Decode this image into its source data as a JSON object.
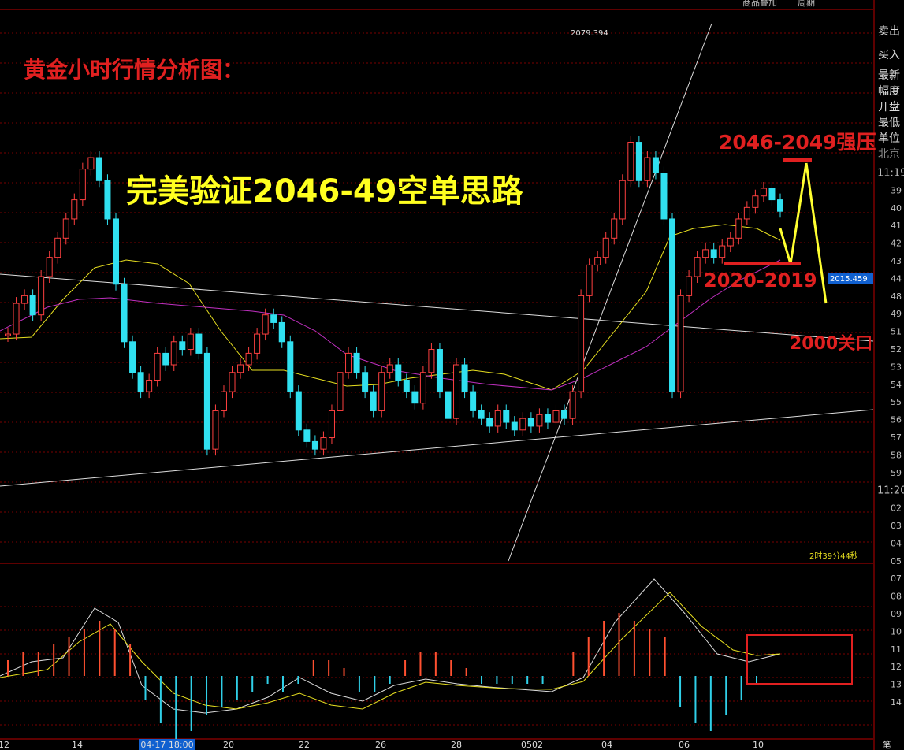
{
  "header": {
    "title": "黄金小时行情分析图：",
    "headline": "完美验证2046-49空单思路",
    "top_menu": [
      "商品叠加",
      "周期"
    ]
  },
  "annotations": {
    "resistance": "2046-2049强压",
    "support": "2020-2019",
    "key_level": "2000关口"
  },
  "price_labels": {
    "high": "2079.394",
    "last": "2015.459"
  },
  "countdown": "2时39分44秒",
  "side_panel": [
    "卖出",
    "买入",
    "最新",
    "幅度",
    "开盘",
    "最低",
    "单位",
    "北京"
  ],
  "time_scale": [
    "11:19",
    "39",
    "40",
    "41",
    "42",
    "43",
    "44",
    "48",
    "49",
    "51",
    "52",
    "53",
    "54",
    "55",
    "56",
    "57",
    "58",
    "59",
    "11:20",
    "02",
    "03",
    "04",
    "05",
    "07",
    "08",
    "09",
    "10",
    "11",
    "12",
    "13",
    "14"
  ],
  "x_axis": [
    "12",
    "14",
    "04-17 18:00",
    "20",
    "22",
    "26",
    "28",
    "0502",
    "04",
    "06",
    "10",
    "笔"
  ],
  "candles": {
    "closes": [
      2000,
      2008,
      2010,
      2005,
      2015,
      2020,
      2025,
      2030,
      2035,
      2043,
      2046,
      2040,
      2030,
      2013,
      1998,
      1990,
      1985,
      1988,
      1995,
      1992,
      1998,
      1996,
      2000,
      1995,
      1970,
      1980,
      1985,
      1990,
      1992,
      1995,
      2000,
      2005,
      2003,
      1998,
      1985,
      1975,
      1972,
      1970,
      1973,
      1980,
      1990,
      1995,
      1990,
      1985,
      1980,
      1990,
      1992,
      1988,
      1985,
      1982,
      1990,
      1996,
      1985,
      1978,
      1992,
      1985,
      1980,
      1978,
      1976,
      1980,
      1977,
      1975,
      1978,
      1976,
      1979,
      1977,
      1980,
      1978,
      1985,
      2010,
      2018,
      2020,
      2025,
      2030,
      2040,
      2050,
      2040,
      2046,
      2042,
      2030,
      1985,
      2010,
      2015,
      2020,
      2022,
      2020,
      2023,
      2025,
      2030,
      2033,
      2036,
      2038,
      2035,
      2032
    ]
  },
  "macd": {
    "hist": [
      2,
      3,
      3,
      4,
      5,
      6,
      7,
      6,
      4,
      -3,
      -6,
      -8,
      -7,
      -5,
      -4,
      -3,
      -2,
      -1,
      -2,
      -1,
      2,
      2,
      1,
      -2,
      -2,
      -1,
      2,
      3,
      3,
      2,
      1,
      -1,
      -1,
      -1,
      -1,
      -1,
      0,
      3,
      5,
      7,
      8,
      7,
      6,
      5,
      -4,
      -6,
      -7,
      -5,
      -3,
      -1
    ]
  }
}
